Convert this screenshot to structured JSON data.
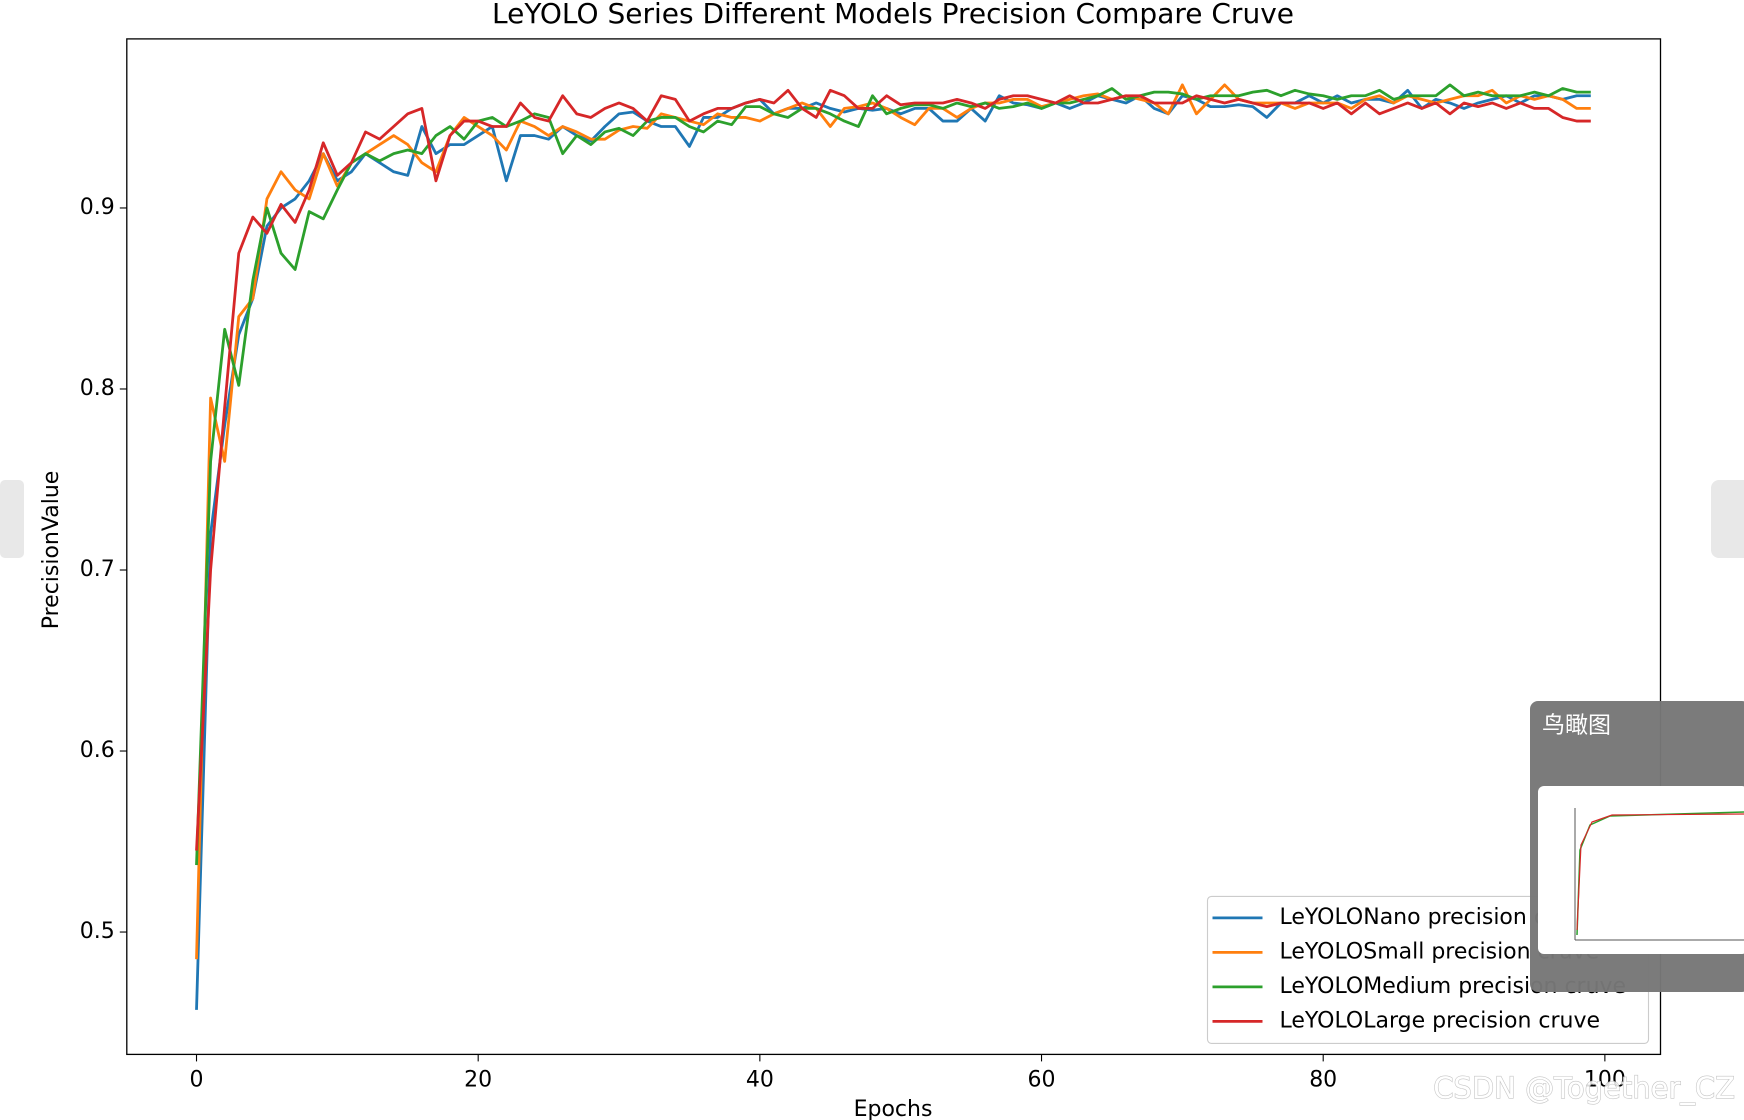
{
  "chart_data": {
    "type": "line",
    "title": "LeYOLO Series Different Models Precision Compare Cruve",
    "x_label": "Epochs",
    "y_label": "PrecisionValue",
    "x": [
      0,
      1,
      2,
      3,
      4,
      5,
      6,
      7,
      8,
      9,
      10,
      11,
      12,
      13,
      14,
      15,
      16,
      17,
      18,
      19,
      20,
      21,
      22,
      23,
      24,
      25,
      26,
      27,
      28,
      29,
      30,
      31,
      32,
      33,
      34,
      35,
      36,
      37,
      38,
      39,
      40,
      41,
      42,
      43,
      44,
      45,
      46,
      47,
      48,
      49,
      50,
      51,
      52,
      53,
      54,
      55,
      56,
      57,
      58,
      59,
      60,
      61,
      62,
      63,
      64,
      65,
      66,
      67,
      68,
      69,
      70,
      71,
      72,
      73,
      74,
      75,
      76,
      77,
      78,
      79,
      80,
      81,
      82,
      83,
      84,
      85,
      86,
      87,
      88,
      89,
      90,
      91,
      92,
      93,
      94,
      95,
      96,
      97,
      98,
      99
    ],
    "xlim": [
      -4.95,
      103.95
    ],
    "xticks": [
      0,
      20,
      40,
      60,
      80,
      100
    ],
    "ylim": [
      0.4324,
      0.9934
    ],
    "yticks": [
      0.5,
      0.6,
      0.7,
      0.8,
      0.9
    ],
    "legend": "lower right",
    "series": [
      {
        "name": "LeYOLONano precision cruve",
        "color": "#1f77b4",
        "values": [
          0.457,
          0.72,
          0.78,
          0.83,
          0.85,
          0.89,
          0.9,
          0.905,
          0.915,
          0.93,
          0.915,
          0.92,
          0.93,
          0.925,
          0.92,
          0.918,
          0.945,
          0.93,
          0.935,
          0.935,
          0.94,
          0.945,
          0.915,
          0.94,
          0.94,
          0.938,
          0.945,
          0.94,
          0.937,
          0.945,
          0.952,
          0.953,
          0.948,
          0.945,
          0.945,
          0.934,
          0.95,
          0.95,
          0.955,
          0.958,
          0.96,
          0.952,
          0.955,
          0.955,
          0.958,
          0.955,
          0.953,
          0.955,
          0.954,
          0.955,
          0.952,
          0.955,
          0.955,
          0.948,
          0.948,
          0.955,
          0.948,
          0.962,
          0.958,
          0.957,
          0.955,
          0.958,
          0.955,
          0.958,
          0.962,
          0.96,
          0.958,
          0.962,
          0.955,
          0.952,
          0.962,
          0.96,
          0.956,
          0.956,
          0.957,
          0.956,
          0.95,
          0.958,
          0.958,
          0.962,
          0.958,
          0.962,
          0.958,
          0.96,
          0.96,
          0.958,
          0.965,
          0.955,
          0.96,
          0.958,
          0.955,
          0.958,
          0.96,
          0.962,
          0.958,
          0.962,
          0.962,
          0.96,
          0.962,
          0.962
        ]
      },
      {
        "name": "LeYOLOSmall precision cruve",
        "color": "#ff7f0e",
        "values": [
          0.485,
          0.795,
          0.76,
          0.84,
          0.85,
          0.905,
          0.92,
          0.91,
          0.905,
          0.93,
          0.912,
          0.925,
          0.93,
          0.935,
          0.94,
          0.935,
          0.925,
          0.92,
          0.94,
          0.95,
          0.945,
          0.94,
          0.932,
          0.948,
          0.945,
          0.94,
          0.945,
          0.942,
          0.938,
          0.938,
          0.943,
          0.945,
          0.944,
          0.952,
          0.95,
          0.948,
          0.946,
          0.952,
          0.95,
          0.95,
          0.948,
          0.952,
          0.955,
          0.958,
          0.955,
          0.945,
          0.955,
          0.956,
          0.958,
          0.955,
          0.95,
          0.946,
          0.955,
          0.955,
          0.95,
          0.955,
          0.958,
          0.958,
          0.96,
          0.96,
          0.956,
          0.958,
          0.96,
          0.962,
          0.963,
          0.96,
          0.962,
          0.96,
          0.958,
          0.952,
          0.968,
          0.952,
          0.96,
          0.968,
          0.96,
          0.958,
          0.958,
          0.958,
          0.955,
          0.958,
          0.958,
          0.958,
          0.955,
          0.96,
          0.962,
          0.958,
          0.962,
          0.96,
          0.958,
          0.96,
          0.962,
          0.962,
          0.965,
          0.958,
          0.962,
          0.96,
          0.962,
          0.96,
          0.955,
          0.955
        ]
      },
      {
        "name": "LeYOLOMedium precision cruve",
        "color": "#2ca02c",
        "values": [
          0.537,
          0.76,
          0.833,
          0.802,
          0.86,
          0.9,
          0.875,
          0.866,
          0.898,
          0.894,
          0.91,
          0.925,
          0.93,
          0.926,
          0.93,
          0.932,
          0.93,
          0.94,
          0.945,
          0.938,
          0.948,
          0.95,
          0.945,
          0.948,
          0.952,
          0.95,
          0.93,
          0.94,
          0.935,
          0.942,
          0.944,
          0.94,
          0.948,
          0.95,
          0.95,
          0.945,
          0.942,
          0.948,
          0.946,
          0.956,
          0.956,
          0.952,
          0.95,
          0.955,
          0.955,
          0.952,
          0.948,
          0.945,
          0.962,
          0.952,
          0.955,
          0.957,
          0.957,
          0.955,
          0.958,
          0.956,
          0.958,
          0.955,
          0.956,
          0.958,
          0.955,
          0.958,
          0.958,
          0.96,
          0.962,
          0.966,
          0.96,
          0.962,
          0.964,
          0.964,
          0.963,
          0.96,
          0.962,
          0.962,
          0.962,
          0.964,
          0.965,
          0.962,
          0.965,
          0.963,
          0.962,
          0.96,
          0.962,
          0.962,
          0.965,
          0.96,
          0.962,
          0.962,
          0.962,
          0.968,
          0.962,
          0.964,
          0.962,
          0.962,
          0.962,
          0.964,
          0.962,
          0.966,
          0.964,
          0.964
        ]
      },
      {
        "name": "LeYOLOLarge precision cruve",
        "color": "#d62728",
        "values": [
          0.545,
          0.7,
          0.79,
          0.875,
          0.895,
          0.886,
          0.902,
          0.892,
          0.91,
          0.936,
          0.918,
          0.925,
          0.942,
          0.938,
          0.945,
          0.952,
          0.955,
          0.915,
          0.94,
          0.948,
          0.948,
          0.945,
          0.945,
          0.958,
          0.95,
          0.948,
          0.962,
          0.952,
          0.95,
          0.955,
          0.958,
          0.955,
          0.948,
          0.962,
          0.96,
          0.948,
          0.952,
          0.955,
          0.955,
          0.958,
          0.96,
          0.958,
          0.965,
          0.955,
          0.95,
          0.965,
          0.962,
          0.955,
          0.955,
          0.962,
          0.957,
          0.958,
          0.958,
          0.958,
          0.96,
          0.958,
          0.955,
          0.96,
          0.962,
          0.962,
          0.96,
          0.958,
          0.962,
          0.958,
          0.958,
          0.96,
          0.962,
          0.962,
          0.958,
          0.958,
          0.958,
          0.962,
          0.96,
          0.958,
          0.96,
          0.958,
          0.956,
          0.958,
          0.958,
          0.958,
          0.955,
          0.958,
          0.952,
          0.958,
          0.952,
          0.955,
          0.958,
          0.955,
          0.958,
          0.952,
          0.958,
          0.956,
          0.958,
          0.955,
          0.958,
          0.955,
          0.955,
          0.95,
          0.948,
          0.948
        ]
      }
    ]
  },
  "overlay": {
    "title": "鸟瞰图"
  },
  "watermark": "CSDN @Together_CZ"
}
